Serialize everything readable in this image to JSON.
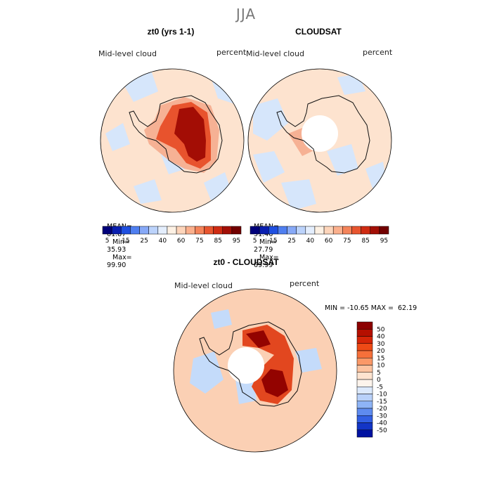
{
  "figure": {
    "season_title": "JJA"
  },
  "panels": [
    {
      "title": "zt0 (yrs 1-1)",
      "variable_label": "Mid-level cloud",
      "units_label": "percent",
      "stats": {
        "mean_label": "MEAN=",
        "mean": "61.87",
        "min_label": "Min=",
        "min": "35.93",
        "max_label": "Max=",
        "max": "99.90"
      }
    },
    {
      "title": "CLOUDSAT",
      "variable_label": "Mid-level cloud",
      "units_label": "percent",
      "stats": {
        "mean_label": "MEAN=",
        "mean": "51.46",
        "min_label": "Min=",
        "min": "27.79",
        "max_label": "Max=",
        "max": "69.99"
      }
    },
    {
      "title": "zt0 - CLOUDSAT",
      "variable_label": "Mid-level cloud",
      "units_label": "percent",
      "stats_line": "MIN = -10.65 MAX =  62.19"
    }
  ],
  "colorbar_abs": {
    "ticks": [
      "5",
      "15",
      "25",
      "40",
      "60",
      "75",
      "85",
      "95"
    ],
    "colors": [
      "#00007a",
      "#0a1fb0",
      "#1f4fe0",
      "#4f7ff0",
      "#87a9f7",
      "#bcd3fb",
      "#e4eefd",
      "#fdf1e4",
      "#fdd5bb",
      "#fbb08d",
      "#f4845a",
      "#e8552f",
      "#cf2b12",
      "#a30f06",
      "#720000"
    ]
  },
  "colorbar_diff": {
    "ticks": [
      "50",
      "40",
      "30",
      "20",
      "15",
      "10",
      "5",
      "0",
      "-5",
      "-10",
      "-15",
      "-20",
      "-30",
      "-40",
      "-50"
    ],
    "colors": [
      "#8c0000",
      "#b50f00",
      "#d52508",
      "#ee4a16",
      "#f6703a",
      "#fa9867",
      "#fcc3a0",
      "#fee3cf",
      "#fdf4ec",
      "#dce9fc",
      "#b9d1fa",
      "#8eb4f6",
      "#5e8bef",
      "#325fe3",
      "#1335c6",
      "#0012a1"
    ]
  },
  "map_colors": {
    "ocean_abs": "#fde3cf",
    "low_cloud": "#d6e6fb",
    "high_cloud": "#f6b194",
    "very_high": "#e8532d",
    "peak": "#a30d05",
    "diff_base": "#fbd0b4",
    "diff_high": "#e2471f",
    "diff_peak": "#930300",
    "diff_neg": "#c4dbfa",
    "mask": "#ffffff"
  }
}
